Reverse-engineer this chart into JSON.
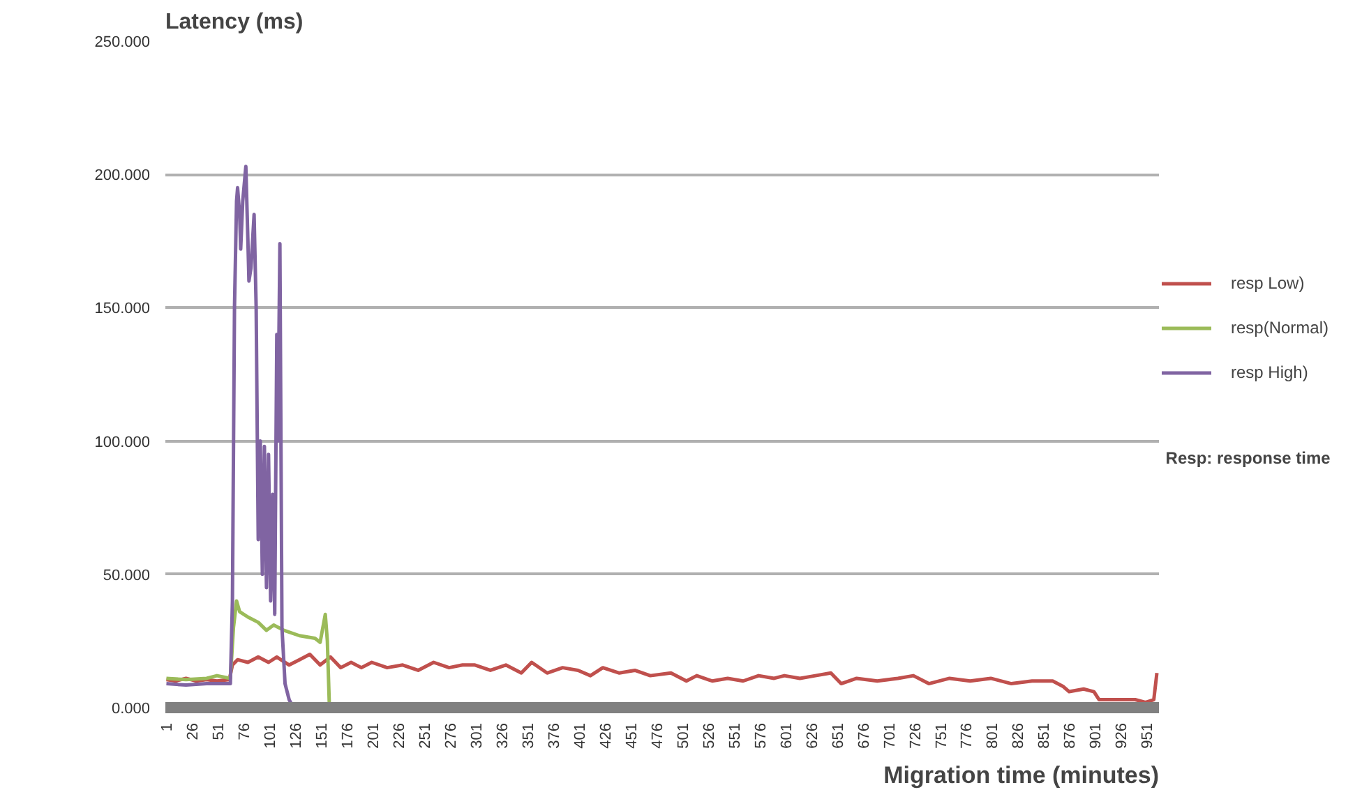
{
  "chart_data": {
    "type": "line",
    "ylabel": "Latency (ms)",
    "xlabel": "Migration time (minutes)",
    "annotations": [
      "Resp: response time"
    ],
    "xlim": [
      0,
      963
    ],
    "xticks": [
      1,
      26,
      51,
      76,
      101,
      126,
      151,
      176,
      201,
      226,
      251,
      276,
      301,
      326,
      351,
      376,
      401,
      426,
      451,
      476,
      501,
      526,
      551,
      576,
      601,
      626,
      651,
      676,
      701,
      726,
      751,
      776,
      801,
      826,
      851,
      876,
      901,
      926,
      951
    ],
    "ylim": [
      0,
      250
    ],
    "yticks": [
      {
        "value": 0,
        "label": "0.000"
      },
      {
        "value": 50,
        "label": "50.000"
      },
      {
        "value": 100,
        "label": "100.000"
      },
      {
        "value": 150,
        "label": "150.000"
      },
      {
        "value": 200,
        "label": "200.000"
      },
      {
        "value": 250,
        "label": "250.000"
      }
    ],
    "grid": "y",
    "legend": "right",
    "marker": "none",
    "series": [
      {
        "name": "resp Low)",
        "color": "#c0504d",
        "x": [
          1,
          10,
          20,
          30,
          40,
          50,
          62,
          65,
          70,
          80,
          90,
          100,
          108,
          120,
          130,
          140,
          150,
          160,
          170,
          180,
          190,
          200,
          215,
          230,
          245,
          260,
          275,
          288,
          300,
          315,
          330,
          345,
          355,
          370,
          385,
          400,
          412,
          424,
          440,
          455,
          470,
          490,
          505,
          515,
          530,
          545,
          560,
          575,
          590,
          600,
          615,
          630,
          645,
          655,
          670,
          690,
          710,
          725,
          740,
          760,
          780,
          800,
          820,
          840,
          860,
          870,
          876,
          890,
          900,
          905,
          920,
          940,
          950,
          958,
          961
        ],
        "values": [
          10.5,
          10,
          11,
          10,
          10.5,
          10,
          10.5,
          16,
          18,
          17,
          19,
          17,
          19,
          16,
          18,
          20,
          16,
          19,
          15,
          17,
          15,
          17,
          15,
          16,
          14,
          17,
          15,
          16,
          16,
          14,
          16,
          13,
          17,
          13,
          15,
          14,
          12,
          15,
          13,
          14,
          12,
          13,
          10,
          12,
          10,
          11,
          10,
          12,
          11,
          12,
          11,
          12,
          13,
          9,
          11,
          10,
          11,
          12,
          9,
          11,
          10,
          11,
          9,
          10,
          10,
          8,
          6,
          7,
          6,
          3,
          3,
          3,
          2,
          3,
          13
        ]
      },
      {
        "name": "resp(Normal)",
        "color": "#9bbb59",
        "x": [
          1,
          20,
          40,
          50,
          63,
          66,
          69,
          72,
          80,
          90,
          98,
          105,
          115,
          130,
          145,
          150,
          155,
          157,
          159
        ],
        "values": [
          11,
          10.5,
          11,
          12,
          11,
          30,
          40,
          36,
          34,
          32,
          29,
          31,
          29,
          27,
          26,
          24.5,
          35,
          25,
          0
        ]
      },
      {
        "name": "resp High)",
        "color": "#8064a2",
        "x": [
          1,
          20,
          40,
          63,
          65,
          67,
          69,
          70,
          72,
          73,
          75,
          78,
          80,
          81,
          83,
          86,
          88,
          90,
          92,
          94,
          96,
          98,
          100,
          102,
          104,
          106,
          108,
          109,
          111,
          113,
          116,
          120,
          124
        ],
        "values": [
          9,
          8.5,
          9,
          9,
          40,
          150,
          190,
          195,
          185,
          172,
          190,
          203,
          175,
          160,
          165,
          185,
          150,
          63,
          100,
          50,
          98,
          45,
          95,
          40,
          80,
          35,
          140,
          100,
          174,
          30,
          9,
          3,
          0
        ]
      }
    ]
  }
}
